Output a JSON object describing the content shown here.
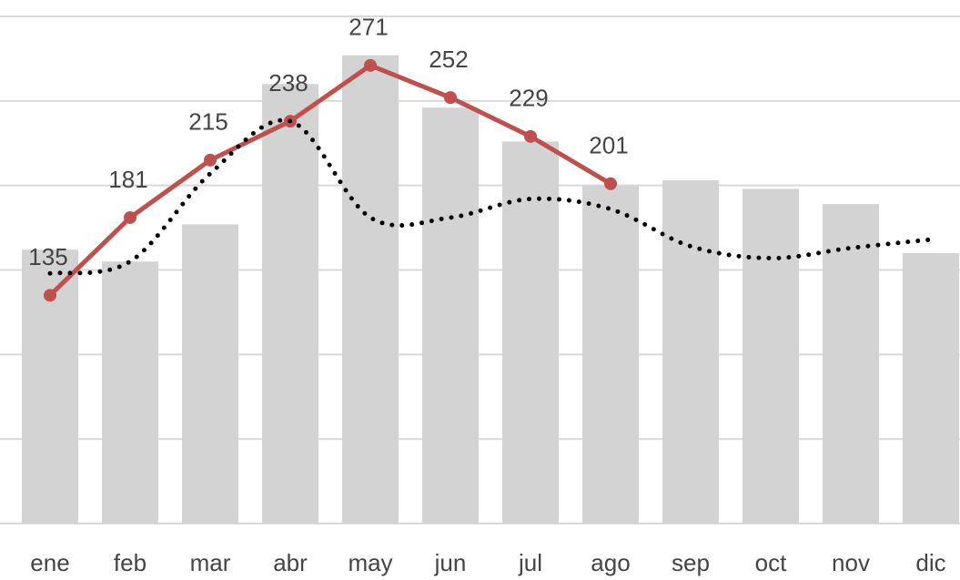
{
  "chart_data": {
    "type": "bar",
    "categories": [
      "ene",
      "feb",
      "mar",
      "abr",
      "may",
      "jun",
      "jul",
      "ago",
      "sep",
      "oct",
      "nov",
      "dic"
    ],
    "ylim": [
      0,
      300
    ],
    "yticks": [
      0,
      50,
      100,
      150,
      200,
      250,
      300
    ],
    "grid": true,
    "series": [
      {
        "type": "bar",
        "color": "#d3d3d3",
        "values": [
          162,
          155,
          177,
          260,
          277,
          246,
          226,
          200,
          203,
          198,
          189,
          160
        ]
      },
      {
        "type": "line",
        "color": "#c0504d",
        "markers": true,
        "data_labels": true,
        "values": [
          135,
          181,
          215,
          238,
          271,
          252,
          229,
          201,
          null,
          null,
          null,
          null
        ]
      },
      {
        "type": "line",
        "color": "#000000",
        "dash": "dotted",
        "smooth": true,
        "values": [
          148,
          155,
          207,
          238,
          181,
          181,
          192,
          186,
          164,
          157,
          163,
          168
        ]
      }
    ]
  }
}
